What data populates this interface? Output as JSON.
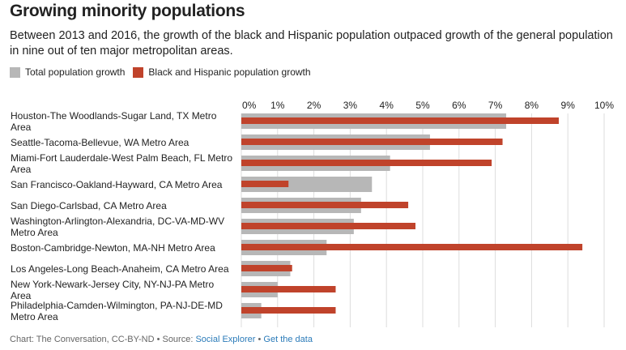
{
  "chart_data": {
    "type": "bar",
    "title": "Growing minority populations",
    "subtitle": "Between 2013 and 2016, the growth of the black and Hispanic population outpaced growth of the general population in nine out of ten major metropolitan areas.",
    "categories": [
      "Houston-The Woodlands-Sugar Land, TX Metro Area",
      "Seattle-Tacoma-Bellevue, WA Metro Area",
      "Miami-Fort Lauderdale-West Palm Beach, FL Metro Area",
      "San Francisco-Oakland-Hayward, CA Metro Area",
      "San Diego-Carlsbad, CA Metro Area",
      "Washington-Arlington-Alexandria, DC-VA-MD-WV Metro Area",
      "Boston-Cambridge-Newton, MA-NH Metro Area",
      "Los Angeles-Long Beach-Anaheim, CA Metro Area",
      "New York-Newark-Jersey City, NY-NJ-PA Metro Area",
      "Philadelphia-Camden-Wilmington, PA-NJ-DE-MD Metro Area"
    ],
    "series": [
      {
        "name": "Total population growth",
        "color": "#b7b7b7",
        "values": [
          7.3,
          5.2,
          4.1,
          3.6,
          3.3,
          3.1,
          2.35,
          1.35,
          1.0,
          0.55
        ]
      },
      {
        "name": "Black and Hispanic population growth",
        "color": "#c0432b",
        "values": [
          8.75,
          7.2,
          6.9,
          1.3,
          4.6,
          4.8,
          9.4,
          1.4,
          2.6,
          2.6
        ]
      }
    ],
    "xlim": [
      0,
      10
    ],
    "x_ticks": [
      "0%",
      "1%",
      "2%",
      "3%",
      "4%",
      "5%",
      "6%",
      "7%",
      "8%",
      "9%",
      "10%"
    ],
    "grid": true,
    "legend_position": "top-left"
  },
  "footer": {
    "credit": "Chart: The Conversation, CC-BY-ND",
    "sep1": " • Source: ",
    "source": "Social Explorer",
    "sep2": " • ",
    "data_link": "Get the data"
  }
}
